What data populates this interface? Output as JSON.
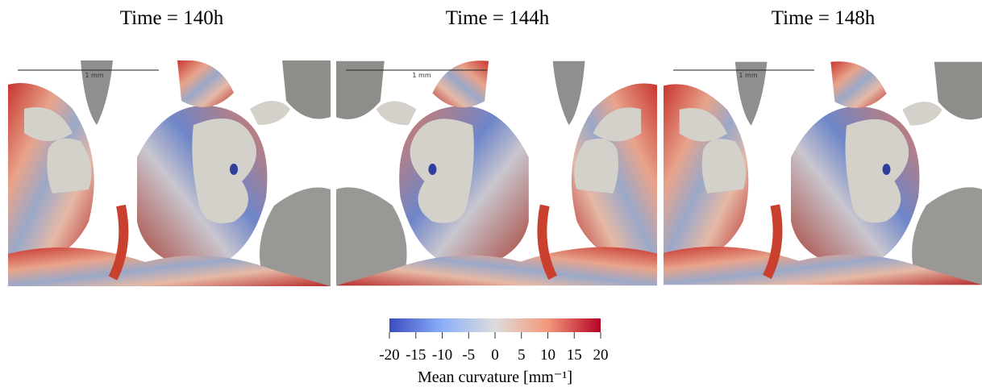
{
  "panels": [
    {
      "title": "Time = 140h",
      "scale_label": "1 mm"
    },
    {
      "title": "Time = 144h",
      "scale_label": "1 mm"
    },
    {
      "title": "Time = 148h",
      "scale_label": "1 mm"
    }
  ],
  "colorbar": {
    "label": "Mean curvature [mm⁻¹]",
    "lim": [
      -20,
      20
    ],
    "ticks": [
      -20,
      -15,
      -10,
      -5,
      0,
      5,
      10,
      15,
      20
    ]
  }
}
